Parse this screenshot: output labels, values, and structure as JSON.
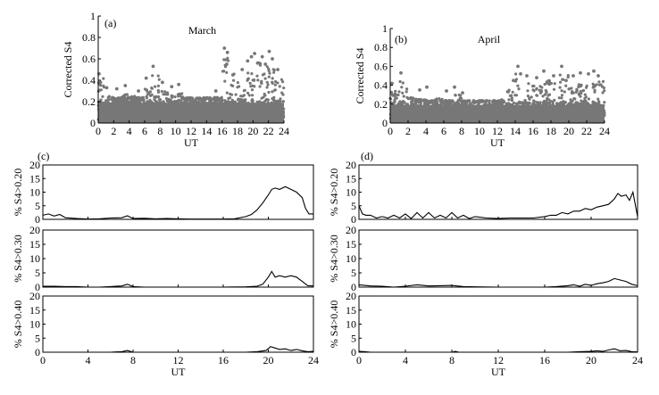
{
  "chart_data": [
    {
      "id": "a",
      "type": "scatter",
      "panel_label": "(a)",
      "title": "March",
      "ylabel": "Corrected S4",
      "xlabel": "UT",
      "xlim": [
        0,
        24
      ],
      "ylim": [
        0,
        1
      ],
      "xticks": [
        "0",
        "2",
        "4",
        "6",
        "8",
        "10",
        "12",
        "14",
        "16",
        "18",
        "20",
        "22",
        "24"
      ],
      "yticks": [
        "0",
        "0.2",
        "0.4",
        "0.6",
        "0.8",
        "1"
      ],
      "color": "#777777",
      "hourly_max": [
        0.5,
        0.33,
        0.32,
        0.35,
        0.33,
        0.3,
        0.42,
        0.53,
        0.38,
        0.34,
        0.36,
        0.3,
        0.28,
        0.27,
        0.29,
        0.28,
        0.7,
        0.55,
        0.5,
        0.58,
        0.65,
        0.66,
        0.6,
        0.5
      ],
      "points": [
        [
          0.1,
          0.46
        ],
        [
          0.3,
          0.38
        ],
        [
          1.1,
          0.33
        ],
        [
          2.4,
          0.32
        ],
        [
          3.5,
          0.35
        ],
        [
          5.2,
          0.3
        ],
        [
          6.2,
          0.42
        ],
        [
          7.1,
          0.53
        ],
        [
          8.3,
          0.38
        ],
        [
          9.5,
          0.34
        ],
        [
          10.4,
          0.36
        ],
        [
          15.2,
          0.3
        ],
        [
          16.3,
          0.7
        ],
        [
          16.7,
          0.66
        ],
        [
          16.6,
          0.55
        ],
        [
          17.4,
          0.45
        ],
        [
          18.6,
          0.5
        ],
        [
          19.3,
          0.58
        ],
        [
          19.8,
          0.62
        ],
        [
          20.2,
          0.65
        ],
        [
          20.6,
          0.56
        ],
        [
          21.2,
          0.62
        ],
        [
          21.6,
          0.55
        ],
        [
          22.1,
          0.67
        ],
        [
          22.5,
          0.6
        ],
        [
          23.2,
          0.5
        ]
      ]
    },
    {
      "id": "b",
      "type": "scatter",
      "panel_label": "(b)",
      "title": "April",
      "ylabel": "Corrected S4",
      "xlabel": "UT",
      "xlim": [
        0,
        24
      ],
      "ylim": [
        0,
        1
      ],
      "xticks": [
        "0",
        "2",
        "4",
        "6",
        "8",
        "10",
        "12",
        "14",
        "16",
        "18",
        "20",
        "22",
        "24"
      ],
      "yticks": [
        "0",
        "0.2",
        "0.4",
        "0.6",
        "0.8",
        "1"
      ],
      "color": "#777777",
      "hourly_max": [
        0.42,
        0.53,
        0.35,
        0.33,
        0.32,
        0.34,
        0.3,
        0.38,
        0.32,
        0.3,
        0.26,
        0.27,
        0.33,
        0.45,
        0.6,
        0.5,
        0.48,
        0.55,
        0.5,
        0.6,
        0.45,
        0.5,
        0.53,
        0.52
      ],
      "points": [
        [
          0.2,
          0.42
        ],
        [
          1.2,
          0.53
        ],
        [
          3.3,
          0.35
        ],
        [
          4.1,
          0.38
        ],
        [
          6.3,
          0.34
        ],
        [
          7.2,
          0.38
        ],
        [
          8.1,
          0.32
        ],
        [
          13.2,
          0.33
        ],
        [
          13.8,
          0.45
        ],
        [
          14.3,
          0.6
        ],
        [
          14.6,
          0.52
        ],
        [
          15.3,
          0.5
        ],
        [
          16.4,
          0.48
        ],
        [
          17.2,
          0.55
        ],
        [
          17.8,
          0.43
        ],
        [
          18.3,
          0.5
        ],
        [
          19.2,
          0.6
        ],
        [
          19.7,
          0.45
        ],
        [
          20.5,
          0.5
        ],
        [
          21.3,
          0.53
        ],
        [
          22.2,
          0.52
        ],
        [
          22.8,
          0.55
        ],
        [
          23.3,
          0.5
        ]
      ]
    },
    {
      "id": "c1",
      "type": "line",
      "panel_label": "(c)",
      "ylabel": "% S4>0.20",
      "xlim": [
        0,
        24
      ],
      "ylim": [
        0,
        20
      ],
      "xticks": [],
      "yticks": [
        "0",
        "5",
        "10",
        "15",
        "20"
      ],
      "x": [
        0,
        0.5,
        1,
        1.5,
        2,
        3,
        4,
        5,
        6,
        7,
        7.5,
        8,
        9,
        10,
        11,
        12,
        13,
        14,
        15,
        16,
        17,
        18,
        18.5,
        19,
        19.5,
        20,
        20.3,
        20.6,
        21,
        21.5,
        22,
        22.5,
        23,
        23.3,
        23.6,
        24
      ],
      "y": [
        1.5,
        2,
        1.2,
        1.8,
        0.6,
        0.3,
        0.1,
        0.2,
        0.5,
        0.6,
        1.3,
        0.3,
        0.4,
        0.2,
        0.3,
        0.2,
        0.1,
        0.1,
        0.1,
        0.1,
        0.2,
        1,
        1.8,
        3.5,
        6,
        9,
        11,
        11.5,
        11,
        12,
        11,
        10,
        8,
        4,
        2,
        2
      ]
    },
    {
      "id": "c2",
      "type": "line",
      "ylabel": "% S4>0.30",
      "xlim": [
        0,
        24
      ],
      "ylim": [
        0,
        20
      ],
      "xticks": [],
      "yticks": [
        "0",
        "5",
        "10",
        "15",
        "20"
      ],
      "x": [
        0,
        1,
        2,
        3,
        4,
        5,
        6,
        7,
        7.5,
        8,
        9,
        10,
        12,
        14,
        16,
        18,
        19,
        19.5,
        20,
        20.3,
        20.6,
        21,
        21.5,
        22,
        22.5,
        23,
        23.5,
        24
      ],
      "y": [
        0.3,
        0.3,
        0.2,
        0.2,
        0,
        0,
        0.2,
        0.4,
        1,
        0.2,
        0,
        0,
        0,
        0,
        0,
        0.1,
        0.3,
        1,
        3.5,
        5.5,
        3.5,
        4,
        3.5,
        4,
        3.5,
        2,
        0.5,
        0.4
      ]
    },
    {
      "id": "c3",
      "type": "line",
      "ylabel": "% S4>0.40",
      "xlabel": "UT",
      "xlim": [
        0,
        24
      ],
      "ylim": [
        0,
        20
      ],
      "xticks": [
        "0",
        "4",
        "8",
        "12",
        "16",
        "20",
        "24"
      ],
      "yticks": [
        "0",
        "5",
        "10",
        "15",
        "20"
      ],
      "x": [
        0,
        2,
        4,
        6,
        7,
        7.5,
        8,
        10,
        12,
        14,
        16,
        18,
        19,
        19.8,
        20.2,
        20.6,
        21,
        21.5,
        22,
        22.5,
        23,
        23.5,
        24
      ],
      "y": [
        0,
        0,
        0,
        0,
        0.2,
        0.6,
        0,
        0,
        0,
        0,
        0,
        0,
        0.2,
        0.6,
        2,
        1.5,
        1,
        1.2,
        0.6,
        1,
        0.5,
        0.2,
        0.3
      ]
    },
    {
      "id": "d1",
      "type": "line",
      "panel_label": "(d)",
      "ylabel": "% S4>0.20",
      "xlim": [
        0,
        24
      ],
      "ylim": [
        0,
        20
      ],
      "xticks": [],
      "yticks": [
        "0",
        "5",
        "10",
        "15",
        "20"
      ],
      "x": [
        0,
        0.3,
        0.6,
        1,
        1.5,
        2,
        2.5,
        3,
        3.5,
        4,
        4.5,
        5,
        5.5,
        6,
        6.5,
        7,
        7.5,
        8,
        8.5,
        9,
        9.5,
        10,
        11,
        12,
        13,
        14,
        15,
        16,
        16.5,
        17,
        17.5,
        18,
        18.5,
        19,
        19.5,
        20,
        20.5,
        21,
        21.5,
        22,
        22.3,
        22.6,
        23,
        23.3,
        23.6,
        24
      ],
      "y": [
        5,
        2,
        1.5,
        1.5,
        0.5,
        1,
        0.5,
        1.5,
        0.5,
        2,
        0.3,
        2.5,
        0.5,
        2.5,
        0.5,
        1.5,
        0.5,
        2.5,
        0.5,
        1.5,
        0.3,
        1,
        0.5,
        0.3,
        0.5,
        0.5,
        0.5,
        1,
        1.5,
        1.5,
        2.5,
        2,
        3,
        3,
        4,
        3.5,
        4.5,
        5,
        5.5,
        7.5,
        9.5,
        8.5,
        9,
        7,
        10,
        1
      ]
    },
    {
      "id": "d2",
      "type": "line",
      "ylabel": "% S4>0.30",
      "xlim": [
        0,
        24
      ],
      "ylim": [
        0,
        20
      ],
      "xticks": [],
      "yticks": [
        "0",
        "5",
        "10",
        "15",
        "20"
      ],
      "x": [
        0,
        0.5,
        1,
        2,
        3,
        4,
        5,
        6,
        7,
        8,
        9,
        10,
        12,
        14,
        16,
        17,
        18,
        18.5,
        19,
        19.5,
        20,
        20.5,
        21,
        21.5,
        22,
        22.5,
        23,
        23.5,
        24
      ],
      "y": [
        0.8,
        0.6,
        0.4,
        0.3,
        0,
        0.3,
        0.8,
        0.4,
        0.5,
        0.6,
        0.2,
        0.1,
        0,
        0,
        0,
        0.2,
        0.5,
        0.8,
        0.3,
        1,
        0.6,
        1.2,
        1.5,
        2,
        3,
        2.5,
        2,
        1,
        0.5
      ]
    },
    {
      "id": "d3",
      "type": "line",
      "ylabel": "% S4>0.40",
      "xlabel": "UT",
      "xlim": [
        0,
        24
      ],
      "ylim": [
        0,
        20
      ],
      "xticks": [
        "0",
        "4",
        "8",
        "12",
        "16",
        "20",
        "24"
      ],
      "yticks": [
        "0",
        "5",
        "10",
        "15",
        "20"
      ],
      "x": [
        0,
        0.5,
        1,
        2,
        4,
        6,
        8,
        8.3,
        8.6,
        10,
        12,
        14,
        16,
        18,
        19,
        20,
        20.5,
        21,
        21.5,
        22,
        22.5,
        23,
        23.5,
        24
      ],
      "y": [
        0.3,
        0.2,
        0,
        0,
        0,
        0,
        0,
        0.3,
        0,
        0,
        0,
        0,
        0,
        0,
        0.2,
        0.3,
        0.5,
        0.3,
        0.8,
        1.2,
        0.5,
        0.6,
        0.2,
        0.1
      ]
    }
  ]
}
